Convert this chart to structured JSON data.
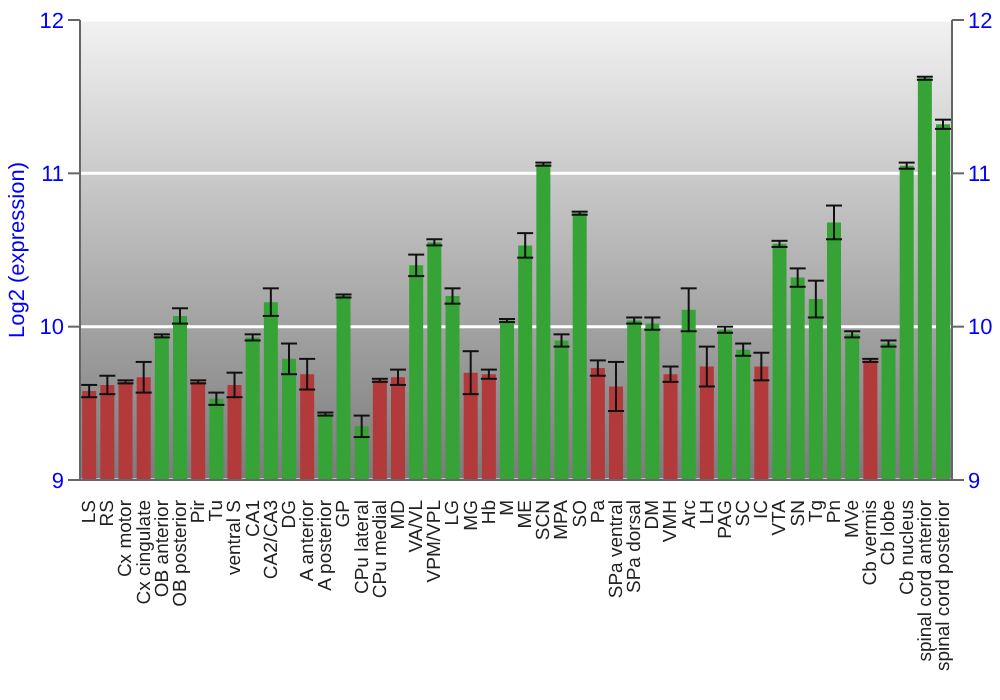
{
  "chart_data": {
    "type": "bar",
    "ylabel": "Log2 (expression)",
    "categories": [
      "LS",
      "RS",
      "Cx motor",
      "Cx cingulate",
      "OB anterior",
      "OB posterior",
      "Pir",
      "Tu",
      "ventral S",
      "CA1",
      "CA2/CA3",
      "DG",
      "A anterior",
      "A posterior",
      "GP",
      "CPu lateral",
      "CPu medial",
      "MD",
      "VA/VL",
      "VPM/VPL",
      "LG",
      "MG",
      "Hb",
      "M",
      "ME",
      "SCN",
      "MPA",
      "SO",
      "Pa",
      "SPa ventral",
      "SPa dorsal",
      "DM",
      "VMH",
      "Arc",
      "LH",
      "PAG",
      "SC",
      "IC",
      "VTA",
      "SN",
      "Tg",
      "Pn",
      "MVe",
      "Cb vermis",
      "Cb lobe",
      "Cb nucleus",
      "spinal cord anterior",
      "spinal cord posterior"
    ],
    "values": [
      9.58,
      9.62,
      9.64,
      9.67,
      9.94,
      10.07,
      9.64,
      9.53,
      9.62,
      9.93,
      10.16,
      9.79,
      9.69,
      9.43,
      10.2,
      9.35,
      9.65,
      9.67,
      10.4,
      10.55,
      10.2,
      9.7,
      9.69,
      10.04,
      10.53,
      11.06,
      9.91,
      10.74,
      9.73,
      9.61,
      10.04,
      10.02,
      9.69,
      10.11,
      9.74,
      9.98,
      9.85,
      9.74,
      10.54,
      10.32,
      10.18,
      10.68,
      9.95,
      9.78,
      9.89,
      11.05,
      11.62,
      11.32
    ],
    "errors": [
      0.04,
      0.06,
      0.01,
      0.1,
      0.01,
      0.05,
      0.01,
      0.04,
      0.08,
      0.02,
      0.09,
      0.1,
      0.1,
      0.01,
      0.01,
      0.07,
      0.01,
      0.05,
      0.07,
      0.02,
      0.05,
      0.14,
      0.03,
      0.01,
      0.08,
      0.01,
      0.04,
      0.01,
      0.05,
      0.16,
      0.02,
      0.04,
      0.05,
      0.14,
      0.13,
      0.02,
      0.04,
      0.09,
      0.02,
      0.06,
      0.12,
      0.11,
      0.02,
      0.01,
      0.02,
      0.02,
      0.01,
      0.03
    ],
    "colors": [
      "#b23a3a",
      "#b23a3a",
      "#b23a3a",
      "#b23a3a",
      "#36a336",
      "#36a336",
      "#b23a3a",
      "#36a336",
      "#b23a3a",
      "#36a336",
      "#36a336",
      "#36a336",
      "#b23a3a",
      "#36a336",
      "#36a336",
      "#36a336",
      "#b23a3a",
      "#b23a3a",
      "#36a336",
      "#36a336",
      "#36a336",
      "#b23a3a",
      "#b23a3a",
      "#36a336",
      "#36a336",
      "#36a336",
      "#36a336",
      "#36a336",
      "#b23a3a",
      "#b23a3a",
      "#36a336",
      "#36a336",
      "#b23a3a",
      "#36a336",
      "#b23a3a",
      "#36a336",
      "#36a336",
      "#b23a3a",
      "#36a336",
      "#36a336",
      "#36a336",
      "#36a336",
      "#36a336",
      "#b23a3a",
      "#36a336",
      "#36a336",
      "#36a336",
      "#36a336"
    ],
    "ylim": [
      9,
      12
    ],
    "yticks": [
      9,
      10,
      11,
      12
    ],
    "y2lim": [
      9,
      12
    ],
    "y2ticks": [
      9,
      10,
      11,
      12
    ],
    "grid": "y"
  }
}
